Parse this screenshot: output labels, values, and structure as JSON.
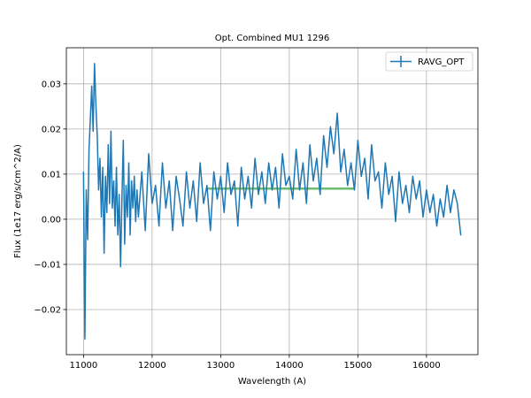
{
  "chart_data": {
    "type": "line",
    "title": "Opt. Combined MU1 1296",
    "xlabel": "Wavelength (A)",
    "ylabel": "Flux (1e17 erg/s/cm^2/A)",
    "xlim": [
      10750,
      16750
    ],
    "ylim": [
      -0.03,
      0.038
    ],
    "x_ticks": [
      11000,
      12000,
      13000,
      14000,
      15000,
      16000
    ],
    "x_tick_labels": [
      "11000",
      "12000",
      "13000",
      "14000",
      "15000",
      "16000"
    ],
    "y_ticks": [
      -0.02,
      -0.01,
      0.0,
      0.01,
      0.02,
      0.03
    ],
    "y_tick_labels": [
      "−0.02",
      "−0.01",
      "0.00",
      "0.01",
      "0.02",
      "0.03"
    ],
    "grid": true,
    "legend_position": "top-right",
    "series": [
      {
        "name": "RAVG_OPT",
        "color": "#1f77b4",
        "x": [
          11000,
          11020,
          11040,
          11060,
          11080,
          11100,
          11120,
          11140,
          11160,
          11180,
          11200,
          11220,
          11240,
          11260,
          11280,
          11300,
          11320,
          11340,
          11360,
          11380,
          11400,
          11420,
          11440,
          11460,
          11480,
          11500,
          11520,
          11540,
          11560,
          11580,
          11600,
          11620,
          11640,
          11660,
          11680,
          11700,
          11720,
          11740,
          11760,
          11780,
          11800,
          11850,
          11900,
          11950,
          12000,
          12050,
          12100,
          12150,
          12200,
          12250,
          12300,
          12350,
          12400,
          12450,
          12500,
          12550,
          12600,
          12650,
          12700,
          12750,
          12800,
          12850,
          12900,
          12950,
          13000,
          13050,
          13100,
          13150,
          13200,
          13250,
          13300,
          13350,
          13400,
          13450,
          13500,
          13550,
          13600,
          13650,
          13700,
          13750,
          13800,
          13850,
          13900,
          13950,
          14000,
          14050,
          14100,
          14150,
          14200,
          14250,
          14300,
          14350,
          14400,
          14450,
          14500,
          14550,
          14600,
          14650,
          14700,
          14750,
          14800,
          14850,
          14900,
          14950,
          15000,
          15050,
          15100,
          15150,
          15200,
          15250,
          15300,
          15350,
          15400,
          15450,
          15500,
          15550,
          15600,
          15650,
          15700,
          15750,
          15800,
          15850,
          15900,
          15950,
          16000,
          16050,
          16100,
          16150,
          16200,
          16250,
          16300,
          16350,
          16400,
          16450,
          16500
        ],
        "y": [
          0.0105,
          -0.0265,
          0.0065,
          -0.0045,
          0.0155,
          0.0225,
          0.0295,
          0.0195,
          0.0345,
          0.0255,
          0.0185,
          0.0065,
          0.0135,
          0.0005,
          0.0115,
          -0.0075,
          0.0095,
          0.0015,
          0.0165,
          0.0035,
          0.0195,
          0.0025,
          0.0085,
          -0.0015,
          0.0115,
          -0.0035,
          0.0055,
          -0.0105,
          0.0045,
          0.0175,
          -0.0055,
          0.0075,
          0.0005,
          0.0125,
          -0.0035,
          0.0085,
          0.0025,
          0.0095,
          -0.0005,
          0.0065,
          0.0005,
          0.0105,
          -0.0025,
          0.0145,
          0.0035,
          0.0075,
          -0.0015,
          0.0125,
          0.0025,
          0.0085,
          -0.0025,
          0.0095,
          0.0045,
          -0.0015,
          0.0105,
          0.0025,
          0.0085,
          -0.0005,
          0.0125,
          0.0035,
          0.0075,
          -0.0025,
          0.0105,
          0.0045,
          0.0095,
          0.0015,
          0.0125,
          0.0055,
          0.0085,
          -0.0015,
          0.0115,
          0.0045,
          0.0095,
          0.0025,
          0.0135,
          0.0055,
          0.0105,
          0.0035,
          0.0125,
          0.0065,
          0.0115,
          0.0025,
          0.0145,
          0.0075,
          0.0095,
          0.0045,
          0.0155,
          0.0065,
          0.0125,
          0.0035,
          0.0165,
          0.0085,
          0.0135,
          0.0055,
          0.0185,
          0.0115,
          0.0205,
          0.0145,
          0.0235,
          0.0105,
          0.0155,
          0.0075,
          0.0125,
          0.0065,
          0.0175,
          0.0095,
          0.0135,
          0.0045,
          0.0165,
          0.0085,
          0.0105,
          0.0025,
          0.0125,
          0.0055,
          0.0095,
          -0.0005,
          0.0105,
          0.0035,
          0.0075,
          0.0015,
          0.0095,
          0.0045,
          0.0085,
          0.0005,
          0.0065,
          0.0015,
          0.0055,
          -0.0015,
          0.0045,
          0.0005,
          0.0075,
          0.0015,
          0.0065,
          0.0035,
          -0.0035
        ]
      }
    ],
    "reference_line": {
      "color": "#2ca02c",
      "x": [
        12800,
        14950
      ],
      "y": [
        0.0068,
        0.0068
      ]
    }
  }
}
